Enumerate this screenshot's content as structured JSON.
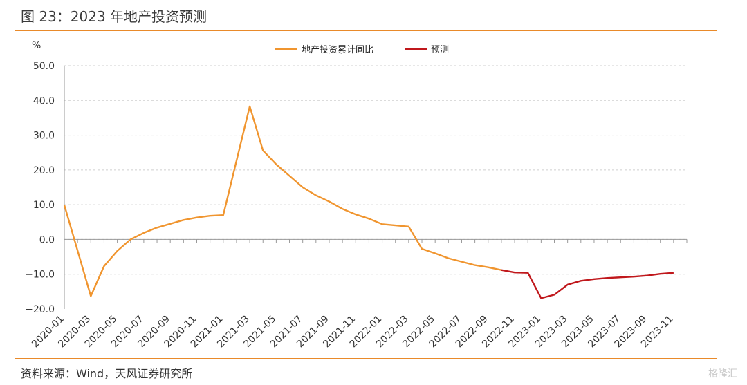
{
  "title": "图 23：2023 年地产投资预测",
  "source": "资料来源：Wind，天风证券研究所",
  "watermark": "格隆汇",
  "chart_data": {
    "type": "line",
    "ylabel": "%",
    "ylim": [
      -20,
      50
    ],
    "yticks": [
      "50.0",
      "40.0",
      "30.0",
      "20.0",
      "10.0",
      "0.0",
      "−10.0",
      "−20.0"
    ],
    "ytick_values": [
      50,
      40,
      30,
      20,
      10,
      0,
      -10,
      -20
    ],
    "grid": true,
    "legend_position": "top-center",
    "x": [
      "2020-01",
      "2020-02",
      "2020-03",
      "2020-04",
      "2020-05",
      "2020-06",
      "2020-07",
      "2020-08",
      "2020-09",
      "2020-10",
      "2020-11",
      "2020-12",
      "2021-01",
      "2021-02",
      "2021-03",
      "2021-04",
      "2021-05",
      "2021-06",
      "2021-07",
      "2021-08",
      "2021-09",
      "2021-10",
      "2021-11",
      "2021-12",
      "2022-01",
      "2022-02",
      "2022-03",
      "2022-04",
      "2022-05",
      "2022-06",
      "2022-07",
      "2022-08",
      "2022-09",
      "2022-10",
      "2022-11",
      "2022-12",
      "2023-01",
      "2023-02",
      "2023-03",
      "2023-04",
      "2023-05",
      "2023-06",
      "2023-07",
      "2023-08",
      "2023-09",
      "2023-10",
      "2023-11",
      "2023-12"
    ],
    "xtick_labels": [
      "2020-01",
      "2020-03",
      "2020-05",
      "2020-07",
      "2020-09",
      "2020-11",
      "2021-01",
      "2021-03",
      "2021-05",
      "2021-07",
      "2021-09",
      "2021-11",
      "2022-01",
      "2022-03",
      "2022-05",
      "2022-07",
      "2022-09",
      "2022-11",
      "2023-01",
      "2023-03",
      "2023-05",
      "2023-07",
      "2023-09",
      "2023-11"
    ],
    "series": [
      {
        "name": "地产投资累计同比",
        "color": "#f0952f",
        "values": [
          9.9,
          null,
          -16.3,
          -7.7,
          -3.3,
          0.0,
          1.9,
          3.4,
          4.5,
          5.6,
          6.3,
          6.8,
          7.0,
          null,
          38.3,
          25.6,
          21.6,
          18.3,
          15.0,
          12.7,
          10.9,
          8.8,
          7.2,
          6.0,
          4.4,
          null,
          3.7,
          -2.7,
          -4.0,
          -5.4,
          -6.4,
          -7.4,
          -8.0,
          -8.8,
          null,
          null,
          null,
          null,
          null,
          null,
          null,
          null,
          null,
          null,
          null,
          null,
          null,
          null
        ]
      },
      {
        "name": "预测",
        "color": "#c0181c",
        "values": [
          null,
          null,
          null,
          null,
          null,
          null,
          null,
          null,
          null,
          null,
          null,
          null,
          null,
          null,
          null,
          null,
          null,
          null,
          null,
          null,
          null,
          null,
          null,
          null,
          null,
          null,
          null,
          null,
          null,
          null,
          null,
          null,
          null,
          -8.8,
          -9.5,
          -9.6,
          -16.9,
          -15.9,
          -13.0,
          -11.9,
          -11.4,
          -11.1,
          -10.9,
          -10.7,
          -10.4,
          -9.9,
          -9.6,
          null
        ]
      }
    ]
  }
}
